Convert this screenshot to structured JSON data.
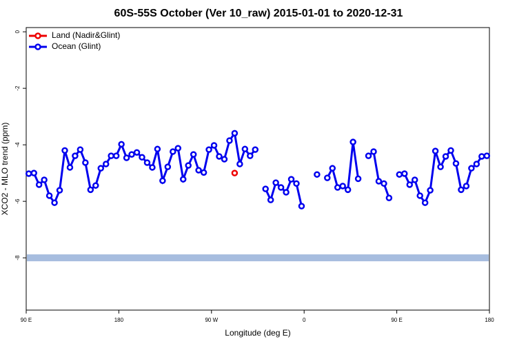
{
  "chart_data": {
    "type": "line",
    "title": "60S-55S October (Ver 10_raw)   2015-01-01 to 2020-12-31",
    "x_label": "Longitude (deg E)",
    "y_label": "XCO2 - MLO trend (ppm)",
    "xlim": [
      90,
      540
    ],
    "ylim": [
      -9.85,
      0.15
    ],
    "xticks": [
      {
        "value": 90,
        "label": "90 E"
      },
      {
        "value": 180,
        "label": "180"
      },
      {
        "value": 270,
        "label": "90 W"
      },
      {
        "value": 360,
        "label": "0"
      },
      {
        "value": 450,
        "label": "90 E"
      },
      {
        "value": 540,
        "label": "180"
      }
    ],
    "yticks": [
      0,
      -2,
      -4,
      -6,
      -8
    ],
    "legend": "top-left",
    "reference_band": {
      "y": -8,
      "color": "#a7bddf"
    },
    "series": [
      {
        "name": "Land (Nadir&Glint)",
        "color": "#ee0000",
        "x": [
          292.5
        ],
        "values": [
          -5.0
        ]
      },
      {
        "name": "Ocean (Glint)",
        "color": "#0000ee",
        "x": [
          92.5,
          97.5,
          102.5,
          107.5,
          112.5,
          117.5,
          122.5,
          127.5,
          132.5,
          137.5,
          142.5,
          147.5,
          152.5,
          157.5,
          162.5,
          167.5,
          172.5,
          177.5,
          182.5,
          187.5,
          192.5,
          197.5,
          202.5,
          207.5,
          212.5,
          217.5,
          222.5,
          227.5,
          232.5,
          237.5,
          242.5,
          247.5,
          252.5,
          257.5,
          262.5,
          267.5,
          272.5,
          277.5,
          282.5,
          287.5,
          292.5,
          297.5,
          302.5,
          307.5,
          312.5,
          317.5,
          322.5,
          327.5,
          332.5,
          337.5,
          342.5,
          347.5,
          352.5,
          357.5,
          362.5,
          367.5,
          372.5,
          377.5,
          382.5,
          387.5,
          392.5,
          397.5,
          402.5,
          407.5,
          412.5,
          417.5,
          422.5,
          427.5,
          432.5,
          437.5,
          442.5,
          447.5,
          452.5,
          457.5,
          462.5,
          467.5,
          472.5,
          477.5,
          482.5,
          487.5,
          492.5,
          497.5,
          502.5,
          507.5,
          512.5,
          517.5,
          522.5,
          527.5,
          532.5,
          537.5
        ],
        "values": [
          -5.02,
          -5.0,
          -5.41,
          -5.24,
          -5.8,
          -6.05,
          -5.61,
          -4.2,
          -4.8,
          -4.39,
          -4.17,
          -4.63,
          -5.59,
          -5.44,
          -4.83,
          -4.68,
          -4.39,
          -4.39,
          -3.98,
          -4.46,
          -4.34,
          -4.27,
          -4.44,
          -4.63,
          -4.8,
          -4.15,
          -5.27,
          -4.78,
          -4.24,
          -4.12,
          -5.22,
          -4.73,
          -4.34,
          -4.9,
          -4.98,
          -4.17,
          -4.02,
          -4.41,
          -4.51,
          -3.85,
          -3.59,
          -4.68,
          -4.15,
          -4.39,
          -4.17,
          null,
          -5.56,
          -5.95,
          -5.34,
          -5.51,
          -5.68,
          -5.22,
          -5.37,
          -6.17,
          null,
          null,
          -5.05,
          null,
          -5.17,
          -4.83,
          -5.51,
          -5.46,
          -5.59,
          -3.9,
          -5.2,
          null,
          -4.39,
          -4.24,
          -5.29,
          -5.37,
          -5.88,
          null,
          -5.05,
          -5.02,
          -5.41,
          -5.24,
          -5.8,
          -6.05,
          -5.61,
          -4.22,
          -4.78,
          -4.41,
          -4.2,
          -4.66,
          -5.59,
          -5.46,
          -4.83,
          -4.68,
          -4.41,
          -4.39
        ]
      }
    ]
  }
}
